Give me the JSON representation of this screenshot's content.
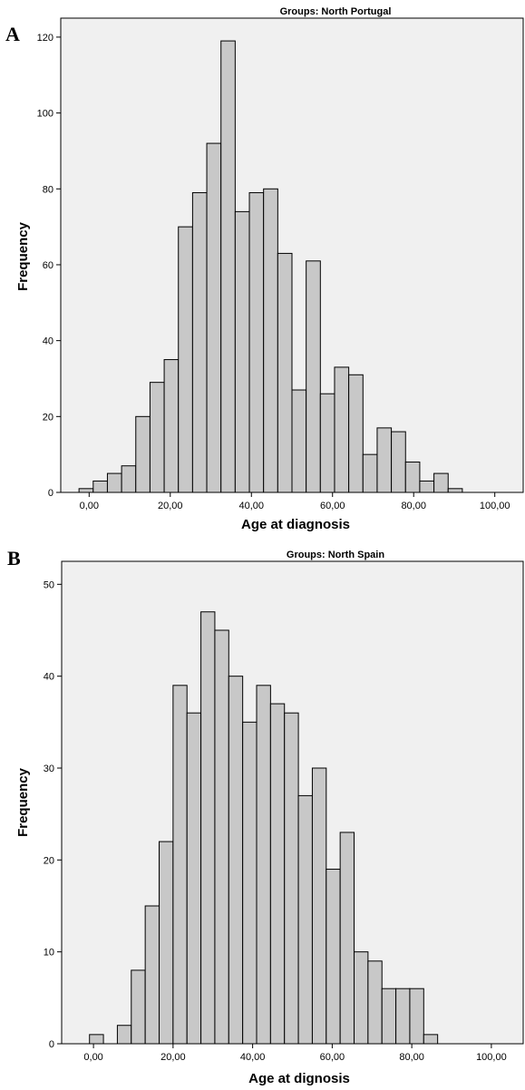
{
  "chart_data": [
    {
      "type": "bar",
      "panel": "A",
      "title": "Groups: North Portugal",
      "xlabel": "Age at diagnosis",
      "ylabel": "Frequency",
      "xlim": [
        -7,
        107
      ],
      "ylim": [
        0,
        125
      ],
      "xticks": [
        0,
        20,
        40,
        60,
        80,
        100
      ],
      "xtick_labels": [
        "0,00",
        "20,00",
        "40,00",
        "60,00",
        "80,00",
        "100,00"
      ],
      "yticks": [
        0,
        20,
        40,
        60,
        80,
        100,
        120
      ],
      "ytick_labels": [
        "0",
        "20",
        "40",
        "60",
        "80",
        "100",
        "120"
      ],
      "bin_width": 3.5,
      "bin_start": -2.5,
      "values": [
        1,
        3,
        5,
        7,
        20,
        29,
        35,
        70,
        79,
        92,
        119,
        74,
        79,
        80,
        63,
        27,
        61,
        26,
        33,
        31,
        10,
        17,
        16,
        8,
        3,
        5,
        1
      ],
      "grid": false,
      "legend": "none",
      "bar_color": "#c8c8c8",
      "plot_background": "#f0f0f0"
    },
    {
      "type": "bar",
      "panel": "B",
      "title": "Groups: North Spain",
      "xlabel": "Age at dignosis",
      "ylabel": "Frequency",
      "xlim": [
        -8,
        108
      ],
      "ylim": [
        0,
        52.5
      ],
      "xticks": [
        0,
        20,
        40,
        60,
        80,
        100
      ],
      "xtick_labels": [
        "0,00",
        "20,00",
        "40,00",
        "60,00",
        "80,00",
        "100,00"
      ],
      "yticks": [
        0,
        10,
        20,
        30,
        40,
        50
      ],
      "ytick_labels": [
        "0",
        "10",
        "20",
        "30",
        "40",
        "50"
      ],
      "bin_width": 3.5,
      "bin_start": -1,
      "values": [
        1,
        0,
        2,
        8,
        15,
        22,
        39,
        36,
        47,
        45,
        40,
        35,
        39,
        37,
        36,
        27,
        30,
        19,
        23,
        10,
        9,
        6,
        6,
        6,
        1
      ],
      "grid": false,
      "legend": "none",
      "bar_color": "#c8c8c8",
      "plot_background": "#f0f0f0"
    }
  ]
}
